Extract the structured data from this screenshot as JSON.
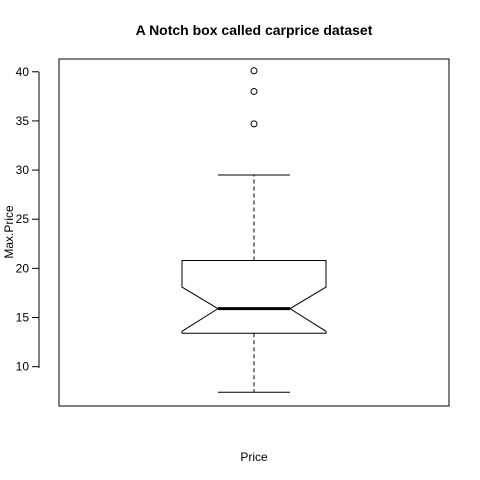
{
  "chart_data": {
    "type": "boxplot",
    "notch": true,
    "title": "A Notch box called carprice dataset",
    "xlabel": "Price",
    "ylabel": "Max.Price",
    "ylim": [
      6.0,
      41.3
    ],
    "y_ticks": [
      10,
      15,
      20,
      25,
      30,
      35,
      40
    ],
    "grid": false,
    "box": {
      "whisker_low": 7.4,
      "q1": 13.4,
      "median": 15.9,
      "q3": 20.8,
      "whisker_high": 29.5,
      "notch_low": 13.6,
      "notch_high": 18.1,
      "outliers": [
        34.7,
        38.0,
        40.1
      ]
    },
    "colors": {
      "stroke": "#000000",
      "background": "#ffffff"
    }
  }
}
